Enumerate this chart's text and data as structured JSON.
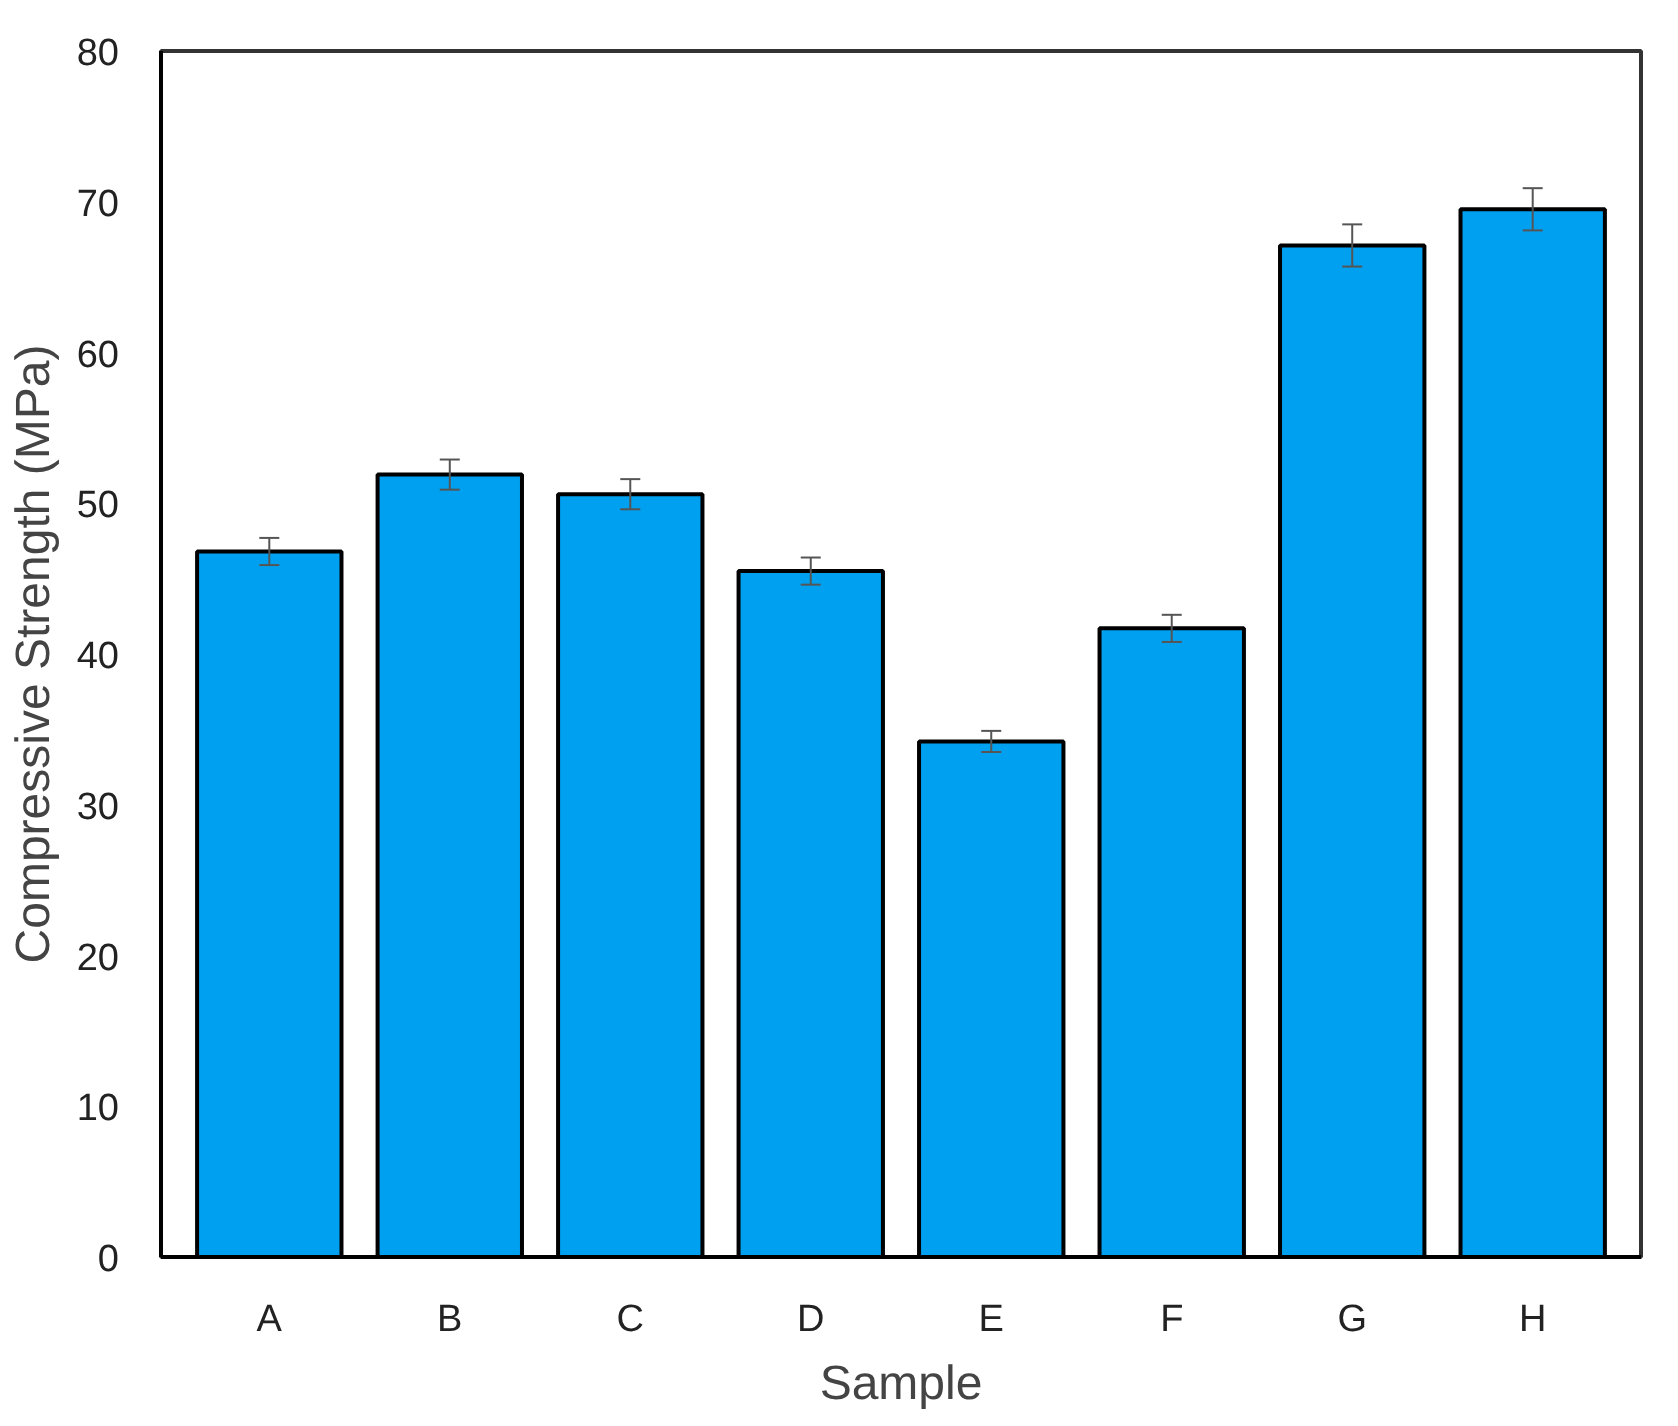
{
  "chart_data": {
    "type": "bar",
    "xlabel": "Sample",
    "ylabel": "Compressive Strength (MPa)",
    "categories": [
      "A",
      "B",
      "C",
      "D",
      "E",
      "F",
      "G",
      "H"
    ],
    "values": [
      46.8,
      51.9,
      50.6,
      45.5,
      34.2,
      41.7,
      67.1,
      69.5
    ],
    "errors": [
      0.9,
      1.0,
      1.0,
      0.9,
      0.7,
      0.9,
      1.4,
      1.4
    ],
    "color": "#00a0f0",
    "ylim": [
      0,
      80
    ],
    "yticks": [
      0,
      10,
      20,
      30,
      40,
      50,
      60,
      70,
      80
    ],
    "grid": false
  }
}
